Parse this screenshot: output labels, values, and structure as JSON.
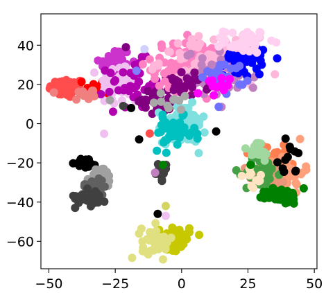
{
  "chart_data": {
    "type": "scatter",
    "title": "",
    "xlabel": "",
    "ylabel": "",
    "xlim": [
      -53,
      51
    ],
    "ylim": [
      -74,
      56
    ],
    "x_ticks": [
      -50,
      -25,
      0,
      25,
      50
    ],
    "x_tick_labels": [
      "−50",
      "−25",
      "0",
      "25",
      "50"
    ],
    "y_ticks": [
      -60,
      -40,
      -20,
      0,
      20,
      40
    ],
    "y_tick_labels": [
      "−60",
      "−40",
      "−20",
      "0",
      "20",
      "40"
    ],
    "grid": false,
    "legend": "none",
    "clusters": [
      {
        "color": "#ff4d4d",
        "cx": -43,
        "cy": 18,
        "sx": 3.5,
        "sy": 2.5,
        "n": 70
      },
      {
        "color": "#ff0000",
        "cx": -30,
        "cy": 19,
        "sx": 3,
        "sy": 2,
        "n": 25
      },
      {
        "color": "#f08080",
        "cx": -36,
        "cy": 15,
        "sx": 3,
        "sy": 2,
        "n": 15
      },
      {
        "color": "#cc33cc",
        "cx": -25,
        "cy": 31,
        "sx": 3,
        "sy": 4,
        "n": 55
      },
      {
        "color": "#f0c0f0",
        "cx": -23,
        "cy": 20,
        "sx": 4,
        "sy": 6,
        "n": 45
      },
      {
        "color": "#b000b0",
        "cx": -18,
        "cy": 20,
        "sx": 5,
        "sy": 6,
        "n": 40
      },
      {
        "color": "#800080",
        "cx": -10,
        "cy": 12,
        "sx": 3,
        "sy": 5,
        "n": 30
      },
      {
        "color": "#ff80c0",
        "cx": 3,
        "cy": 30,
        "sx": 7,
        "sy": 6,
        "n": 120
      },
      {
        "color": "#ffb6d9",
        "cx": 10,
        "cy": 32,
        "sx": 9,
        "sy": 6,
        "n": 80
      },
      {
        "color": "#c080c0",
        "cx": 15,
        "cy": 25,
        "sx": 7,
        "sy": 6,
        "n": 60
      },
      {
        "color": "#800080",
        "cx": 2,
        "cy": 20,
        "sx": 4,
        "sy": 3,
        "n": 25
      },
      {
        "color": "#0000ff",
        "cx": 24,
        "cy": 34,
        "sx": 4,
        "sy": 5,
        "n": 40
      },
      {
        "color": "#7070ff",
        "cx": 16,
        "cy": 24,
        "sx": 4,
        "sy": 4,
        "n": 25
      },
      {
        "color": "#ffd0f0",
        "cx": 24,
        "cy": 42,
        "sx": 4,
        "sy": 3,
        "n": 40
      },
      {
        "color": "#ff00ff",
        "cx": 12,
        "cy": 18,
        "sx": 3,
        "sy": 3,
        "n": 15
      },
      {
        "color": "#80e0e0",
        "cx": 1,
        "cy": 0,
        "sx": 4,
        "sy": 5,
        "n": 80
      },
      {
        "color": "#00c0c0",
        "cx": -3,
        "cy": -5,
        "sx": 4,
        "sy": 4,
        "n": 40
      },
      {
        "color": "#a8a8a8",
        "cx": -4,
        "cy": 12,
        "sx": 3,
        "sy": 3,
        "n": 10
      },
      {
        "color": "#ff7f50",
        "cx": 35,
        "cy": -20,
        "sx": 4,
        "sy": 5,
        "n": 50
      },
      {
        "color": "#ffa07a",
        "cx": 38,
        "cy": -25,
        "sx": 4,
        "sy": 5,
        "n": 55
      },
      {
        "color": "#e9967a",
        "cx": 33,
        "cy": -28,
        "sx": 4,
        "sy": 4,
        "n": 20
      },
      {
        "color": "#45a045",
        "cx": 30,
        "cy": -25,
        "sx": 3,
        "sy": 5,
        "n": 40
      },
      {
        "color": "#008000",
        "cx": 38,
        "cy": -37,
        "sx": 3,
        "sy": 2,
        "n": 40
      },
      {
        "color": "#a0d8a0",
        "cx": 28,
        "cy": -14,
        "sx": 3,
        "sy": 3,
        "n": 20
      },
      {
        "color": "#ffe4c4",
        "cx": 27,
        "cy": -29,
        "sx": 3,
        "sy": 3,
        "n": 10
      },
      {
        "color": "#000000",
        "cx": 41,
        "cy": -18,
        "sx": 3,
        "sy": 5,
        "n": 8
      },
      {
        "color": "#000000",
        "cx": -36,
        "cy": -20,
        "sx": 2,
        "sy": 1.3,
        "n": 22
      },
      {
        "color": "#a0a0a0",
        "cx": -30,
        "cy": -28,
        "sx": 2,
        "sy": 3,
        "n": 35
      },
      {
        "color": "#606060",
        "cx": -33,
        "cy": -33,
        "sx": 2.5,
        "sy": 3,
        "n": 30
      },
      {
        "color": "#404040",
        "cx": -34,
        "cy": -37,
        "sx": 3,
        "sy": 2.5,
        "n": 30
      },
      {
        "color": "#404040",
        "cx": -8,
        "cy": -25,
        "sx": 1.5,
        "sy": 2,
        "n": 15
      },
      {
        "color": "#c8c800",
        "cx": -3,
        "cy": -58,
        "sx": 3,
        "sy": 3,
        "n": 55
      },
      {
        "color": "#e0e080",
        "cx": -9,
        "cy": -60,
        "sx": 3,
        "sy": 4,
        "n": 40
      }
    ],
    "points": [
      {
        "x": 13,
        "y": -4,
        "color": "#000000"
      },
      {
        "x": -16,
        "y": -8,
        "color": "#000000"
      },
      {
        "x": -9,
        "y": -46,
        "color": "#000000"
      },
      {
        "x": -6,
        "y": -42,
        "color": "#d4d460"
      },
      {
        "x": -6,
        "y": -47,
        "color": "#f0c0f0"
      },
      {
        "x": -7,
        "y": -21,
        "color": "#008000"
      },
      {
        "x": -10,
        "y": -25,
        "color": "#c080c0"
      },
      {
        "x": -12,
        "y": -5,
        "color": "#ff4d4d"
      },
      {
        "x": 41,
        "y": -13,
        "color": "#000000"
      },
      {
        "x": 44,
        "y": -15,
        "color": "#000000"
      },
      {
        "x": 43,
        "y": -24,
        "color": "#000000"
      },
      {
        "x": 40,
        "y": -17,
        "color": "#000000"
      },
      {
        "x": 46,
        "y": -33,
        "color": "#008000"
      },
      {
        "x": 26,
        "y": -21,
        "color": "#008000"
      },
      {
        "x": -21,
        "y": 39,
        "color": "#800080"
      },
      {
        "x": -17,
        "y": 27,
        "color": "#8080ff"
      },
      {
        "x": -14,
        "y": 38,
        "color": "#d0d0ff"
      },
      {
        "x": -22,
        "y": 9,
        "color": "#404040"
      },
      {
        "x": -19,
        "y": 8,
        "color": "#000000"
      },
      {
        "x": -27,
        "y": 12,
        "color": "#a0a0a0"
      },
      {
        "x": -33,
        "y": 14,
        "color": "#f08080"
      }
    ]
  }
}
